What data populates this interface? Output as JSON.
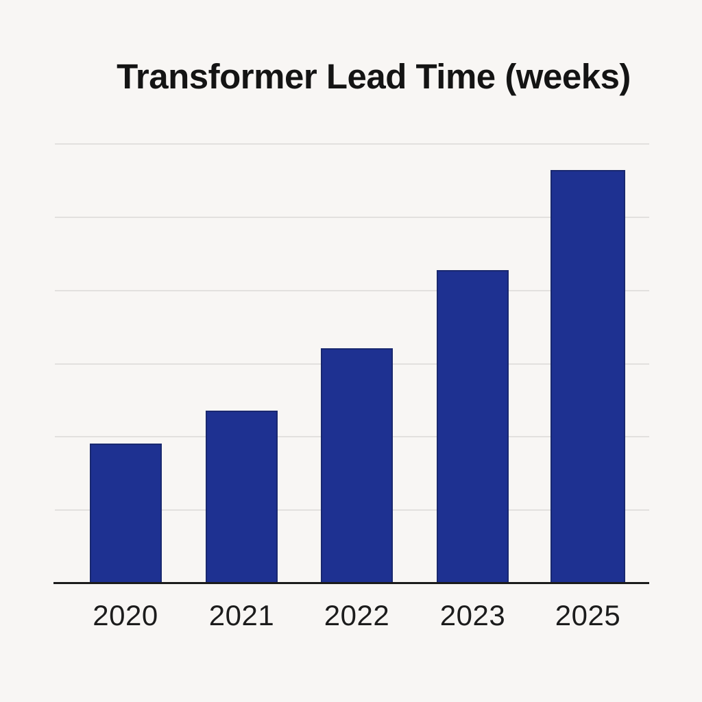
{
  "title": "Transformer Lead Time (weeks)",
  "chart_data": {
    "type": "bar",
    "title": "Transformer Lead Time (weeks)",
    "categories": [
      "2020",
      "2021",
      "2022",
      "2023",
      "2025"
    ],
    "values": [
      19.1,
      23.6,
      32.1,
      42.8,
      56.4
    ],
    "xlabel": "",
    "ylabel": "",
    "ylim": [
      0,
      60
    ],
    "gridline_values": [
      10,
      20,
      30,
      40,
      50,
      60
    ],
    "y_tick_labels_visible": false,
    "grid": "horizontal",
    "legend": "none",
    "value_estimation_note": "y-axis has no tick labels; values estimated from unlabeled gridlines (one gridline interval = 10)",
    "colors": {
      "bar_fill": "#1E3191",
      "bar_edge": "#19286F",
      "gridline": "#E2E0DE",
      "axis_line": "#1B1B1B",
      "background": "#F8F6F4",
      "title_text": "#141414",
      "tick_text": "#1C1C1C"
    }
  }
}
